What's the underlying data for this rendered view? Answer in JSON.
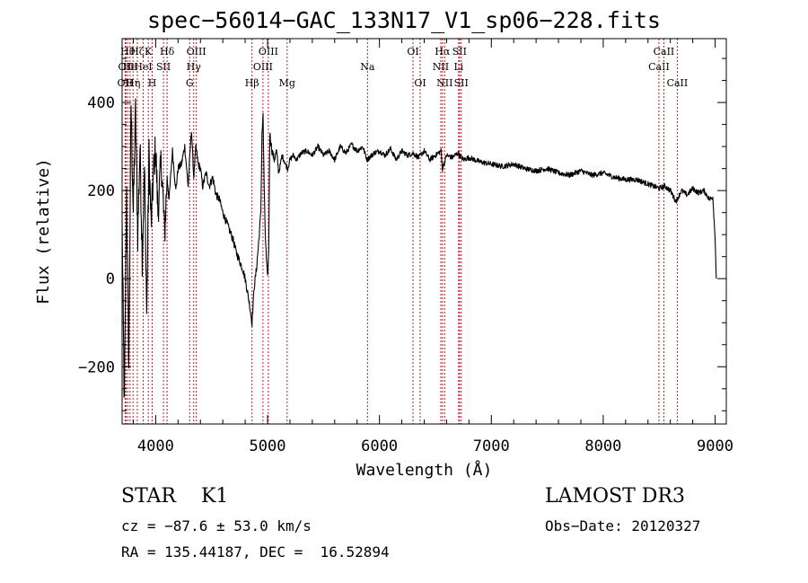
{
  "chart_data": {
    "type": "line",
    "title": "spec−56014−GAC_133N17_V1_sp06−228.fits",
    "xlabel": "Wavelength (Å)",
    "ylabel": "Flux (relative)",
    "xlim": [
      3700,
      9100
    ],
    "ylim": [
      -330,
      545
    ],
    "xticks": [
      4000,
      5000,
      6000,
      7000,
      8000,
      9000
    ],
    "xtick_labels": [
      "4000",
      "5000",
      "6000",
      "7000",
      "8000",
      "9000"
    ],
    "yticks": [
      -200,
      0,
      200,
      400
    ],
    "ytick_labels": [
      "−200",
      "0",
      "200",
      "400"
    ],
    "series": [
      {
        "name": "flux",
        "x": [
          3700,
          3720,
          3740,
          3760,
          3780,
          3800,
          3820,
          3840,
          3860,
          3880,
          3900,
          3920,
          3940,
          3960,
          3980,
          4000,
          4020,
          4050,
          4080,
          4102,
          4120,
          4150,
          4180,
          4200,
          4230,
          4260,
          4290,
          4320,
          4340,
          4360,
          4380,
          4400,
          4420,
          4450,
          4480,
          4510,
          4540,
          4570,
          4600,
          4630,
          4660,
          4690,
          4720,
          4750,
          4780,
          4800,
          4820,
          4840,
          4861,
          4880,
          4900,
          4920,
          4940,
          4950,
          4960,
          4970,
          4980,
          4990,
          5000,
          5010,
          5020,
          5040,
          5060,
          5080,
          5100,
          5130,
          5160,
          5180,
          5200,
          5230,
          5260,
          5300,
          5350,
          5400,
          5450,
          5500,
          5550,
          5600,
          5650,
          5700,
          5750,
          5800,
          5850,
          5890,
          5950,
          6000,
          6050,
          6100,
          6150,
          6200,
          6250,
          6300,
          6350,
          6400,
          6450,
          6500,
          6550,
          6563,
          6600,
          6650,
          6700,
          6750,
          6800,
          6900,
          7000,
          7100,
          7200,
          7300,
          7400,
          7500,
          7600,
          7700,
          7800,
          7900,
          8000,
          8100,
          8200,
          8300,
          8400,
          8500,
          8550,
          8600,
          8650,
          8700,
          8750,
          8800,
          8850,
          8900,
          8950,
          8980,
          9000,
          9010
        ],
        "y": [
          120,
          -300,
          200,
          -200,
          400,
          150,
          380,
          100,
          300,
          50,
          250,
          -80,
          280,
          120,
          240,
          300,
          150,
          270,
          100,
          230,
          180,
          290,
          200,
          250,
          260,
          300,
          210,
          340,
          230,
          300,
          260,
          250,
          210,
          240,
          210,
          230,
          190,
          180,
          150,
          130,
          110,
          90,
          60,
          40,
          20,
          0,
          -30,
          -60,
          -100,
          -20,
          20,
          80,
          150,
          330,
          370,
          200,
          100,
          40,
          0,
          60,
          330,
          290,
          270,
          290,
          240,
          280,
          260,
          250,
          270,
          280,
          270,
          285,
          290,
          280,
          300,
          280,
          290,
          270,
          300,
          285,
          305,
          290,
          300,
          270,
          285,
          290,
          280,
          295,
          270,
          290,
          280,
          285,
          275,
          290,
          270,
          280,
          290,
          250,
          280,
          275,
          285,
          270,
          275,
          265,
          260,
          255,
          260,
          250,
          245,
          250,
          240,
          235,
          245,
          235,
          240,
          230,
          225,
          225,
          215,
          205,
          210,
          200,
          175,
          200,
          190,
          205,
          195,
          200,
          180,
          185,
          90,
          0
        ]
      }
    ],
    "line_markers": [
      {
        "wavelength": 3727,
        "label": "OII",
        "row": 3
      },
      {
        "wavelength": 3735,
        "label": "OII",
        "row": 2
      },
      {
        "wavelength": 3750,
        "label": "Hθ",
        "row": 1
      },
      {
        "wavelength": 3771,
        "label": "He",
        "row": 2
      },
      {
        "wavelength": 3798,
        "label": "Hη",
        "row": 3
      },
      {
        "wavelength": 3836,
        "label": "Hζ",
        "row": 1
      },
      {
        "wavelength": 3889,
        "label": "HeI",
        "row": 2
      },
      {
        "wavelength": 3934,
        "label": "K",
        "row": 1
      },
      {
        "wavelength": 3969,
        "label": "H",
        "row": 3
      },
      {
        "wavelength": 4070,
        "label": "SII",
        "row": 2
      },
      {
        "wavelength": 4102,
        "label": "Hδ",
        "row": 1
      },
      {
        "wavelength": 4304,
        "label": "G",
        "row": 3
      },
      {
        "wavelength": 4340,
        "label": "Hγ",
        "row": 2
      },
      {
        "wavelength": 4363,
        "label": "OIII",
        "row": 1
      },
      {
        "wavelength": 4861,
        "label": "Hβ",
        "row": 3
      },
      {
        "wavelength": 4959,
        "label": "OIII",
        "row": 2
      },
      {
        "wavelength": 5007,
        "label": "OIII",
        "row": 1
      },
      {
        "wavelength": 5175,
        "label": "Mg",
        "row": 3
      },
      {
        "wavelength": 5893,
        "label": "Na",
        "row": 2
      },
      {
        "wavelength": 6300,
        "label": "OI",
        "row": 1
      },
      {
        "wavelength": 6364,
        "label": "OI",
        "row": 3
      },
      {
        "wavelength": 6548,
        "label": "NII",
        "row": 2
      },
      {
        "wavelength": 6563,
        "label": "Hα",
        "row": 1
      },
      {
        "wavelength": 6583,
        "label": "NII",
        "row": 3
      },
      {
        "wavelength": 6708,
        "label": "Li",
        "row": 2
      },
      {
        "wavelength": 6716,
        "label": "SII",
        "row": 1
      },
      {
        "wavelength": 6731,
        "label": "SII",
        "row": 3
      },
      {
        "wavelength": 8498,
        "label": "CaII",
        "row": 2
      },
      {
        "wavelength": 8542,
        "label": "CaII",
        "row": 1
      },
      {
        "wavelength": 8662,
        "label": "CaII",
        "row": 3
      }
    ]
  },
  "info": {
    "object_class": "STAR    K1",
    "survey": "LAMOST DR3",
    "redshift": "cz = −87.6 ± 53.0 km/s",
    "obs_date": "Obs−Date: 20120327",
    "coordinates": "RA = 135.44187, DEC =  16.52894"
  },
  "colors": {
    "spectrum": "#000000",
    "marker_line": "#b22222",
    "axis": "#000000",
    "background": "#ffffff"
  }
}
